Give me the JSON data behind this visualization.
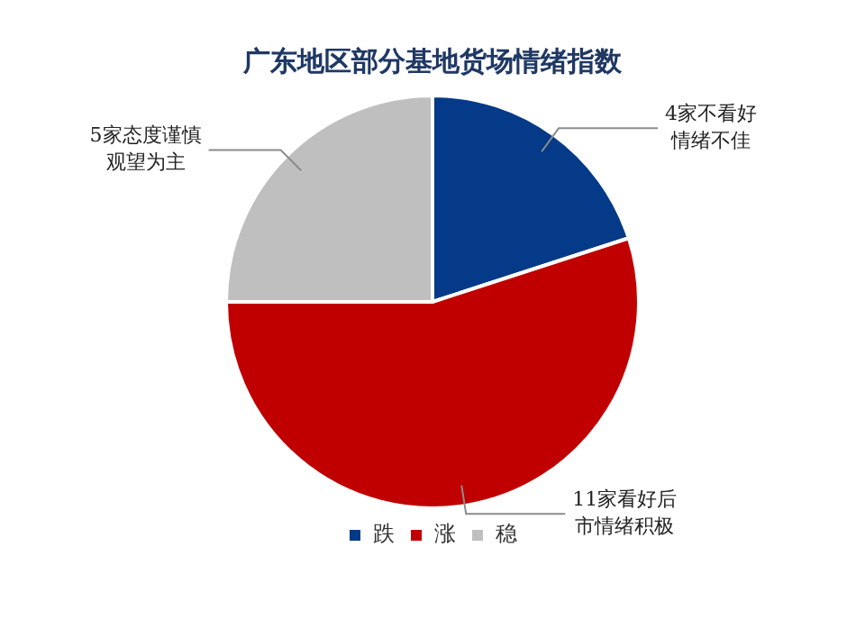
{
  "chart_data": {
    "type": "pie",
    "title": "广东地区部分基地货场情绪指数",
    "categories": [
      "跌",
      "涨",
      "稳"
    ],
    "values": [
      4,
      11,
      5
    ],
    "colors": [
      "#043a87",
      "#c00000",
      "#bfbfbf"
    ],
    "value_labels": [
      "4家不看好情绪不佳",
      "11家看好后市情绪积极",
      "5家态度谨慎观望为主"
    ],
    "legend": "bottom"
  }
}
